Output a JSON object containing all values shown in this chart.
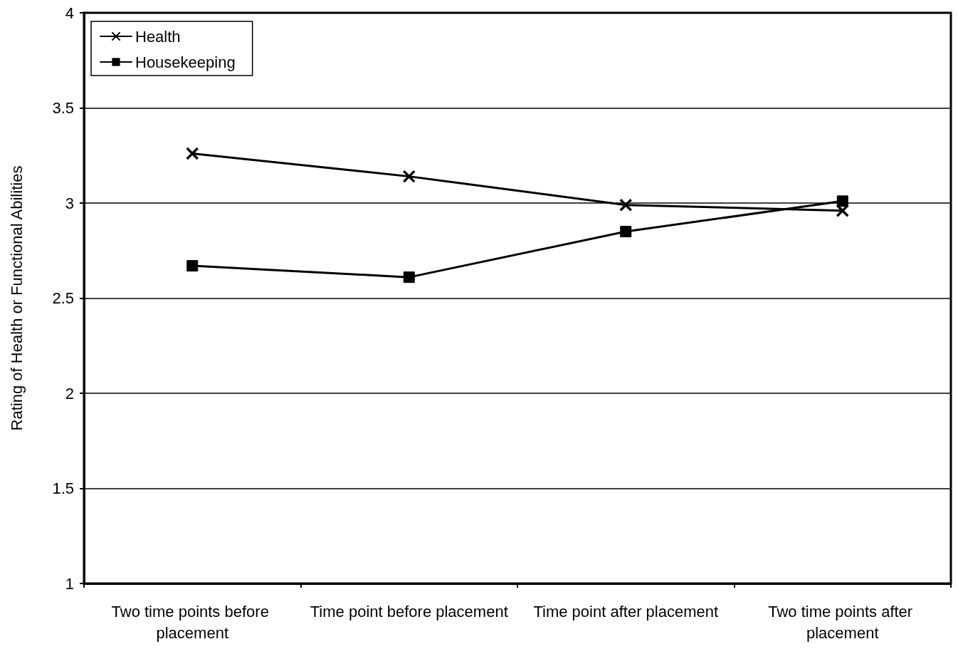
{
  "chart_data": {
    "type": "line",
    "ylabel": "Rating of Health or Functional Abilities",
    "categories": [
      "Two time points before placement",
      "Time point before placement",
      "Time point after placement",
      "Two time points after placement"
    ],
    "series": [
      {
        "name": "Health",
        "color": "#000000",
        "marker": "cross",
        "values": [
          3.26,
          3.14,
          2.99,
          2.96
        ]
      },
      {
        "name": "Housekeeping",
        "color": "#000000",
        "marker": "square",
        "values": [
          2.67,
          2.61,
          2.85,
          3.01
        ]
      }
    ],
    "ylim": [
      1,
      4
    ],
    "yticks": [
      1,
      1.5,
      2,
      2.5,
      3,
      3.5,
      4
    ],
    "grid": "y",
    "legend": "top left",
    "line_style": "solid"
  }
}
